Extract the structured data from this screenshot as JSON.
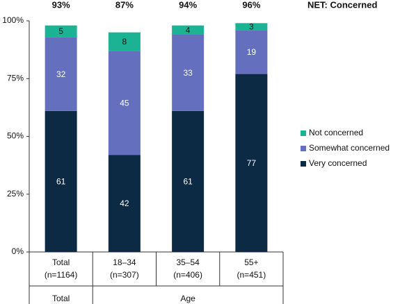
{
  "chart_data": {
    "type": "stacked_bar",
    "categories": [
      "Total\n(n=1164)",
      "18–34\n(n=307)",
      "35–54\n(n=406)",
      "55+\n(n=451)"
    ],
    "x_groups": [
      "Total",
      "Age"
    ],
    "series": [
      {
        "name": "Very concerned",
        "color": "#0c2a44",
        "label_color": "#ffffff",
        "values": [
          61,
          42,
          61,
          77
        ]
      },
      {
        "name": "Somewhat concerned",
        "color": "#6470bd",
        "label_color": "#ffffff",
        "values": [
          32,
          45,
          33,
          19
        ]
      },
      {
        "name": "Not concerned",
        "color": "#1bb394",
        "label_color": "#111111",
        "values": [
          5,
          8,
          4,
          3
        ]
      }
    ],
    "net_title": "NET: Concerned",
    "net_values": [
      93,
      87,
      94,
      96
    ],
    "net_value_labels": [
      "93%",
      "87%",
      "94%",
      "96%"
    ],
    "ylim": [
      0,
      100
    ],
    "yticks": [
      {
        "value": 0,
        "label": "0%"
      },
      {
        "value": 25,
        "label": "25%"
      },
      {
        "value": 50,
        "label": "50%"
      },
      {
        "value": 75,
        "label": "75%"
      },
      {
        "value": 100,
        "label": "100%"
      }
    ],
    "legend": "right"
  }
}
